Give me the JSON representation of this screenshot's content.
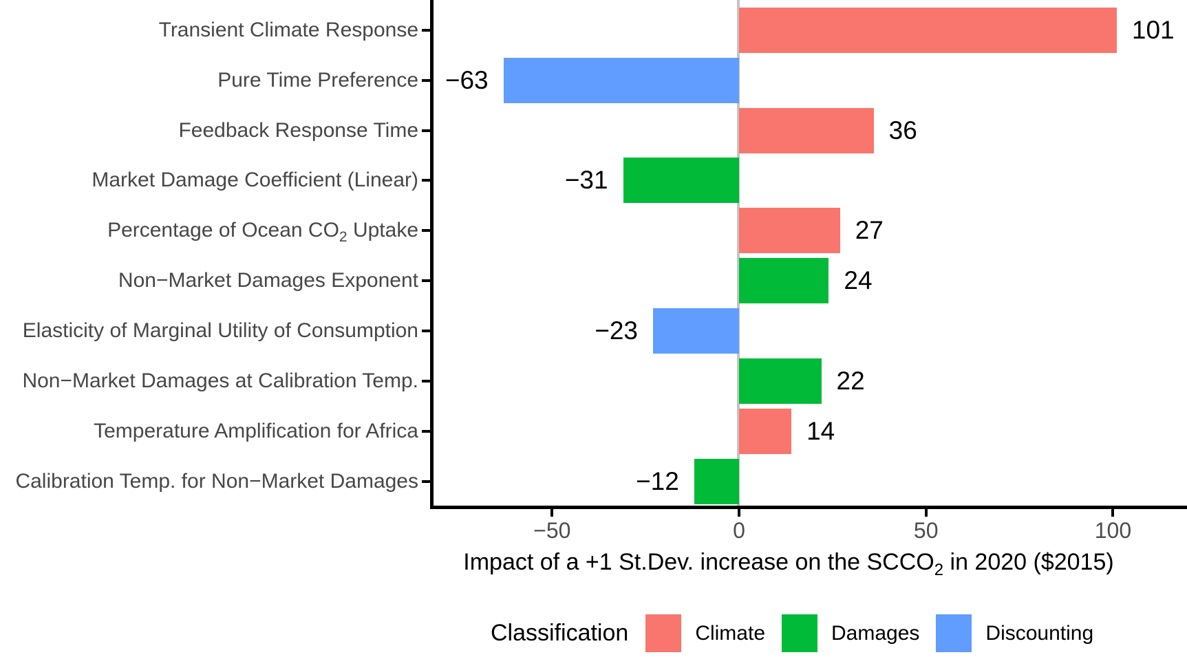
{
  "chart_data": {
    "type": "bar",
    "orientation": "horizontal",
    "xlabel_prefix": "Impact of a +1 St.Dev. increase on the SCCO",
    "xlabel_sub": "2",
    "xlabel_suffix": " in 2020 ($2015)",
    "x_ticks": [
      -50,
      0,
      50,
      100
    ],
    "x_tick_labels": [
      "−50",
      "0",
      "50",
      "100"
    ],
    "xlim": [
      -82.6,
      119.8
    ],
    "grid": "off",
    "zero_line": true,
    "rows": [
      {
        "label": "Transient Climate Response",
        "value": 101,
        "value_label": "101",
        "category": "Climate"
      },
      {
        "label": "Pure Time Preference",
        "value": -63,
        "value_label": "−63",
        "category": "Discounting"
      },
      {
        "label": "Feedback Response Time",
        "value": 36,
        "value_label": "36",
        "category": "Climate"
      },
      {
        "label": "Market Damage Coefficient (Linear)",
        "value": -31,
        "value_label": "−31",
        "category": "Damages"
      },
      {
        "label_prefix": "Percentage of Ocean CO",
        "label_sub": "2",
        "label_suffix": " Uptake",
        "value": 27,
        "value_label": "27",
        "category": "Climate"
      },
      {
        "label": "Non−Market Damages Exponent",
        "value": 24,
        "value_label": "24",
        "category": "Damages"
      },
      {
        "label": "Elasticity of Marginal Utility of Consumption",
        "value": -23,
        "value_label": "−23",
        "category": "Discounting"
      },
      {
        "label": "Non−Market Damages at Calibration Temp.",
        "value": 22,
        "value_label": "22",
        "category": "Damages"
      },
      {
        "label": "Temperature Amplification for Africa",
        "value": 14,
        "value_label": "14",
        "category": "Climate"
      },
      {
        "label": "Calibration Temp. for Non−Market Damages",
        "value": -12,
        "value_label": "−12",
        "category": "Damages"
      }
    ],
    "colors": {
      "Climate": "#F8766D",
      "Damages": "#00BA38",
      "Discounting": "#619CFF"
    },
    "legend": {
      "title": "Classification",
      "position": "bottom",
      "entries": [
        {
          "label": "Climate",
          "color": "#F8766D"
        },
        {
          "label": "Damages",
          "color": "#00BA38"
        },
        {
          "label": "Discounting",
          "color": "#619CFF"
        }
      ]
    }
  }
}
